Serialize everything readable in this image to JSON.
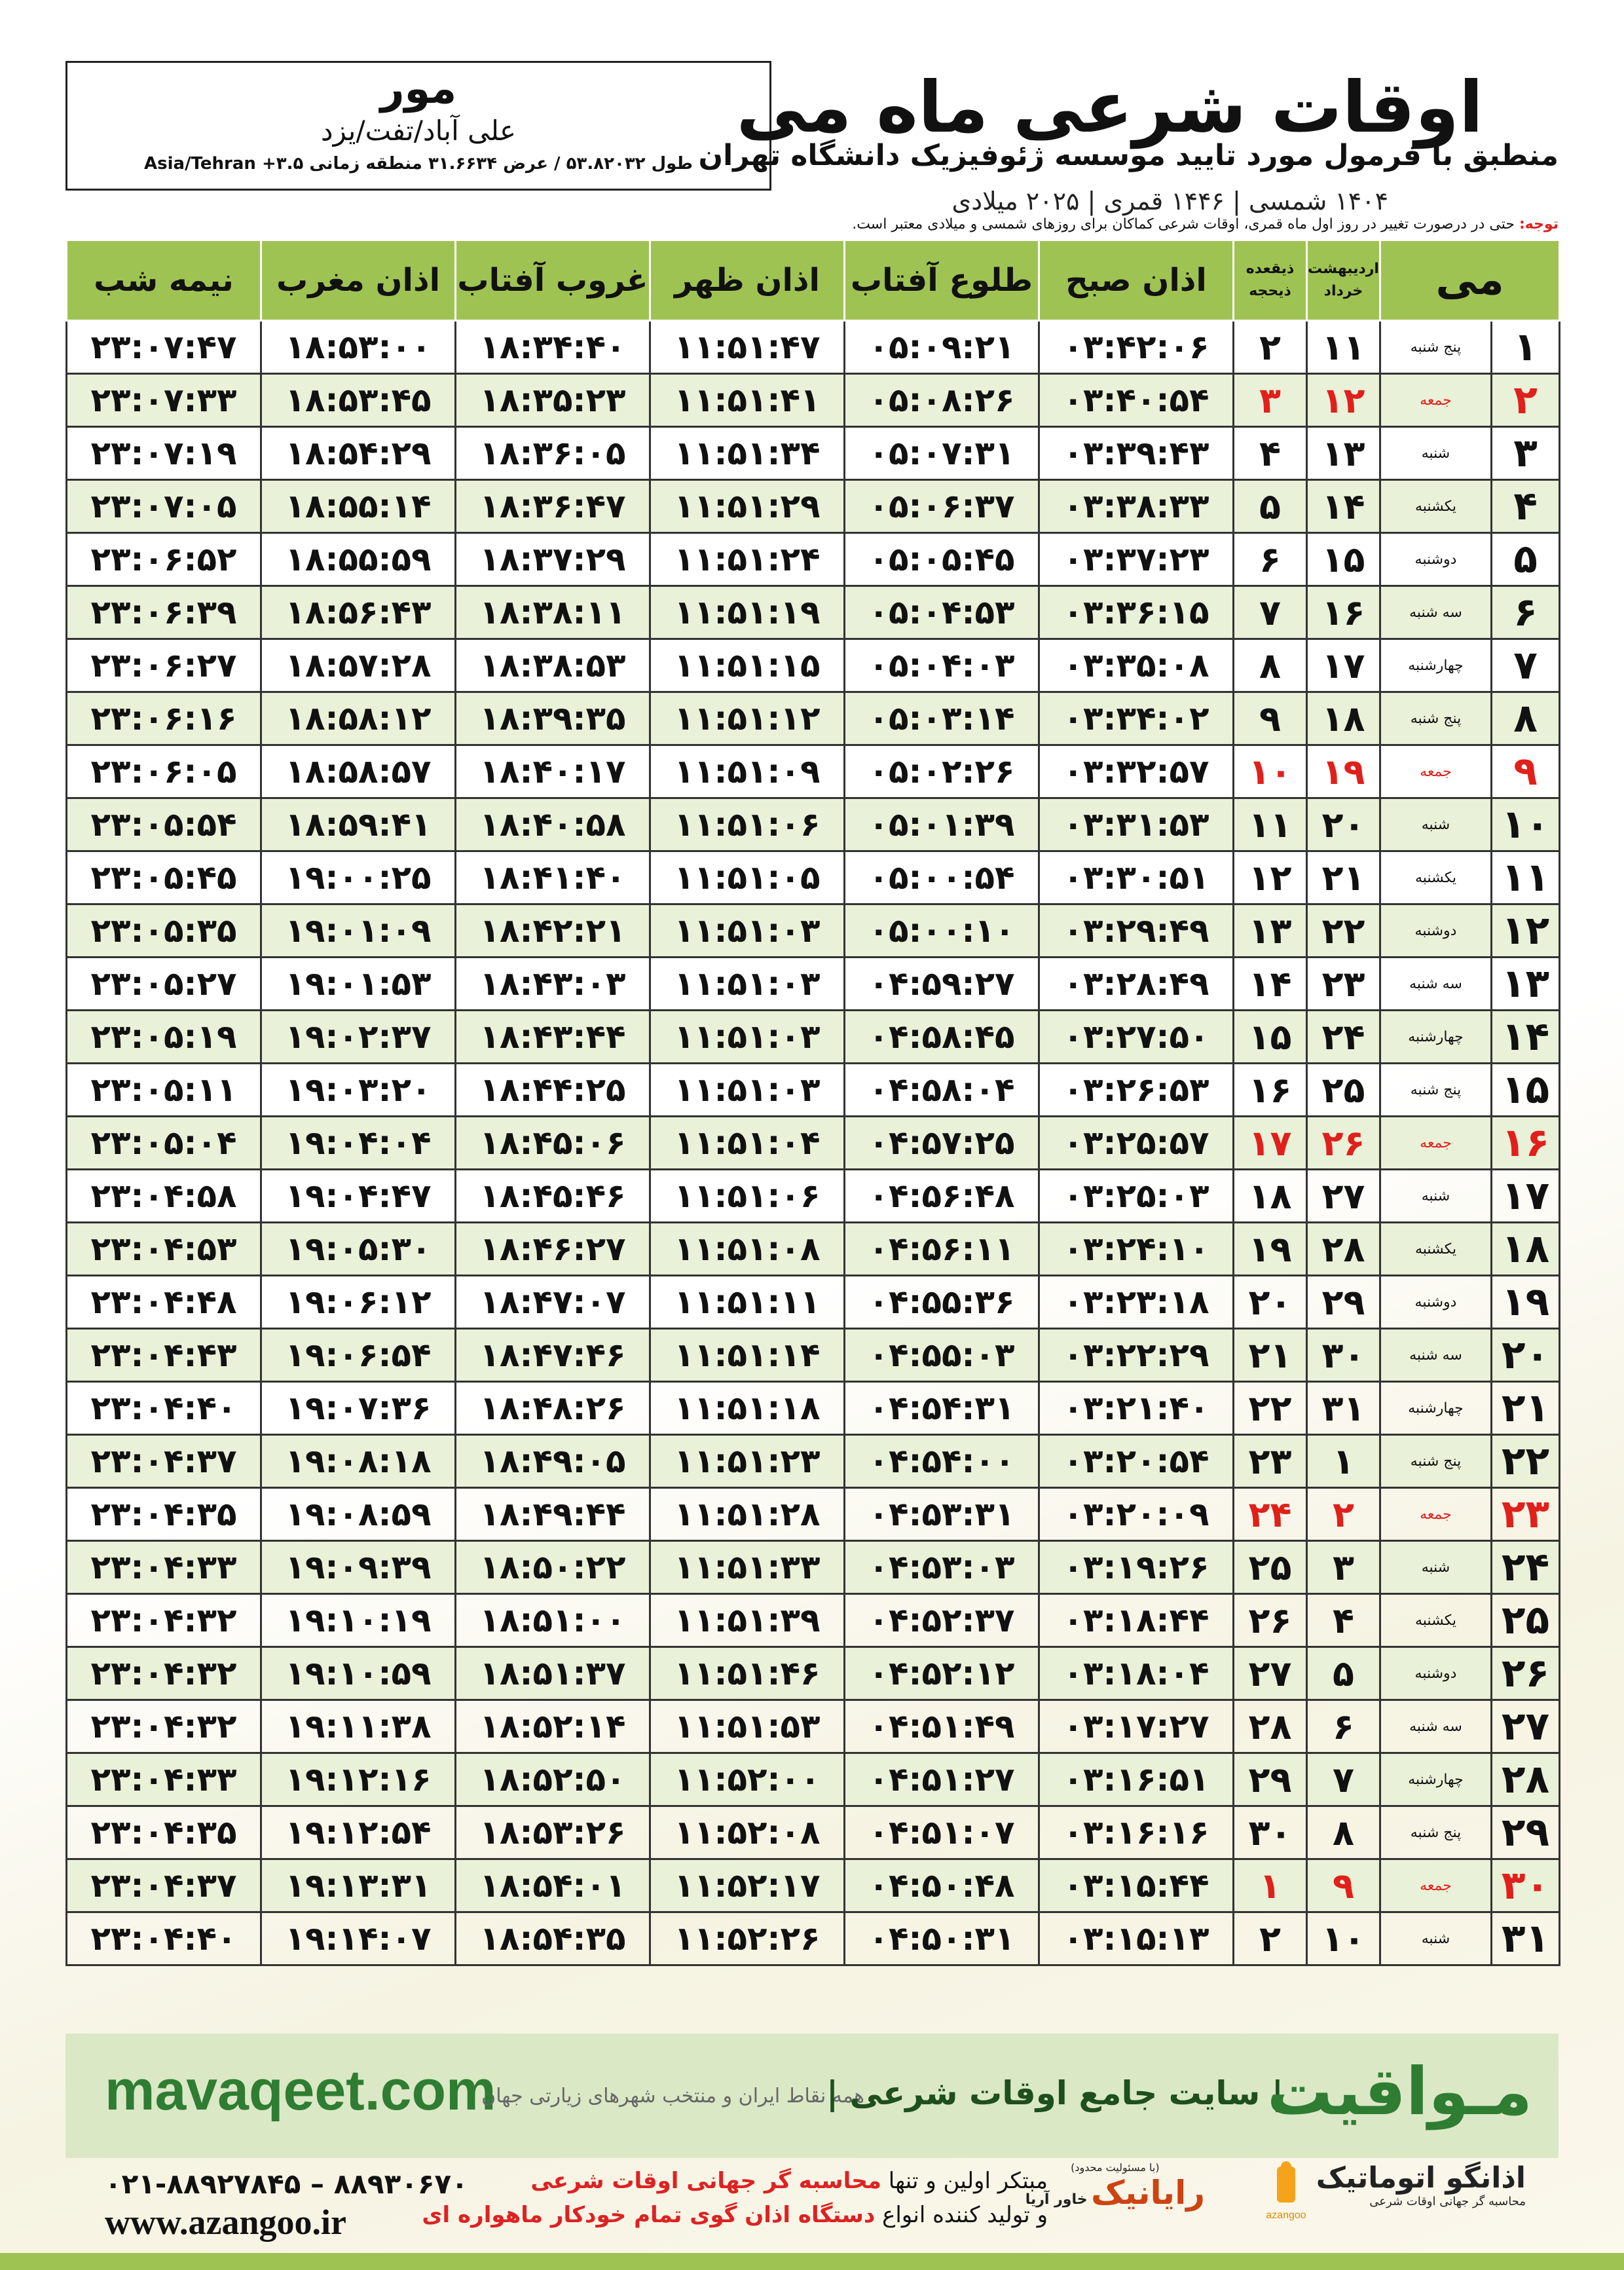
{
  "header": {
    "title": "اوقات شرعی ماه می",
    "subtitle": "منطبق با فرمول مورد تایید موسسه ژئوفیزیک دانشگاه تهران",
    "dates": "۱۴۰۴ شمسی | ۱۴۴۶ قمری | ۲۰۲۵ میلادی"
  },
  "location": {
    "city": "مور",
    "region": "علی آباد/تفت/یزد",
    "coordinates": "طول ۵۳.۸۲۰۳۲ / عرض ۳۱.۶۶۳۴ منطقه زمانی ۳.۵+ Asia/Tehran"
  },
  "note": {
    "label": "توجه:",
    "text": "حتی در درصورت تغییر در روز اول ماه قمری، اوقات شرعی کماکان برای روزهای شمسی و میلادی معتبر است."
  },
  "table": {
    "headers": {
      "month": "می",
      "shamsi": [
        "اردیبهشت",
        "خرداد"
      ],
      "qamari": [
        "ذیقعده",
        "ذیحجه"
      ],
      "times": [
        "اذان صبح",
        "طلوع آفتاب",
        "اذان ظهر",
        "غروب آفتاب",
        "اذان مغرب",
        "نیمه شب"
      ]
    },
    "rows": [
      [
        "۱",
        "پنج شنبه",
        "۱۱",
        "۲",
        "۰۳:۴۲:۰۶",
        "۰۵:۰۹:۲۱",
        "۱۱:۵۱:۴۷",
        "۱۸:۳۴:۴۰",
        "۱۸:۵۳:۰۰",
        "۲۳:۰۷:۴۷"
      ],
      [
        "۲",
        "جمعه",
        "۱۲",
        "۳",
        "۰۳:۴۰:۵۴",
        "۰۵:۰۸:۲۶",
        "۱۱:۵۱:۴۱",
        "۱۸:۳۵:۲۳",
        "۱۸:۵۳:۴۵",
        "۲۳:۰۷:۳۳"
      ],
      [
        "۳",
        "شنبه",
        "۱۳",
        "۴",
        "۰۳:۳۹:۴۳",
        "۰۵:۰۷:۳۱",
        "۱۱:۵۱:۳۴",
        "۱۸:۳۶:۰۵",
        "۱۸:۵۴:۲۹",
        "۲۳:۰۷:۱۹"
      ],
      [
        "۴",
        "یکشنبه",
        "۱۴",
        "۵",
        "۰۳:۳۸:۳۳",
        "۰۵:۰۶:۳۷",
        "۱۱:۵۱:۲۹",
        "۱۸:۳۶:۴۷",
        "۱۸:۵۵:۱۴",
        "۲۳:۰۷:۰۵"
      ],
      [
        "۵",
        "دوشنبه",
        "۱۵",
        "۶",
        "۰۳:۳۷:۲۳",
        "۰۵:۰۵:۴۵",
        "۱۱:۵۱:۲۴",
        "۱۸:۳۷:۲۹",
        "۱۸:۵۵:۵۹",
        "۲۳:۰۶:۵۲"
      ],
      [
        "۶",
        "سه شنبه",
        "۱۶",
        "۷",
        "۰۳:۳۶:۱۵",
        "۰۵:۰۴:۵۳",
        "۱۱:۵۱:۱۹",
        "۱۸:۳۸:۱۱",
        "۱۸:۵۶:۴۳",
        "۲۳:۰۶:۳۹"
      ],
      [
        "۷",
        "چهارشنبه",
        "۱۷",
        "۸",
        "۰۳:۳۵:۰۸",
        "۰۵:۰۴:۰۳",
        "۱۱:۵۱:۱۵",
        "۱۸:۳۸:۵۳",
        "۱۸:۵۷:۲۸",
        "۲۳:۰۶:۲۷"
      ],
      [
        "۸",
        "پنج شنبه",
        "۱۸",
        "۹",
        "۰۳:۳۴:۰۲",
        "۰۵:۰۳:۱۴",
        "۱۱:۵۱:۱۲",
        "۱۸:۳۹:۳۵",
        "۱۸:۵۸:۱۲",
        "۲۳:۰۶:۱۶"
      ],
      [
        "۹",
        "جمعه",
        "۱۹",
        "۱۰",
        "۰۳:۳۲:۵۷",
        "۰۵:۰۲:۲۶",
        "۱۱:۵۱:۰۹",
        "۱۸:۴۰:۱۷",
        "۱۸:۵۸:۵۷",
        "۲۳:۰۶:۰۵"
      ],
      [
        "۱۰",
        "شنبه",
        "۲۰",
        "۱۱",
        "۰۳:۳۱:۵۳",
        "۰۵:۰۱:۳۹",
        "۱۱:۵۱:۰۶",
        "۱۸:۴۰:۵۸",
        "۱۸:۵۹:۴۱",
        "۲۳:۰۵:۵۴"
      ],
      [
        "۱۱",
        "یکشنبه",
        "۲۱",
        "۱۲",
        "۰۳:۳۰:۵۱",
        "۰۵:۰۰:۵۴",
        "۱۱:۵۱:۰۵",
        "۱۸:۴۱:۴۰",
        "۱۹:۰۰:۲۵",
        "۲۳:۰۵:۴۵"
      ],
      [
        "۱۲",
        "دوشنبه",
        "۲۲",
        "۱۳",
        "۰۳:۲۹:۴۹",
        "۰۵:۰۰:۱۰",
        "۱۱:۵۱:۰۳",
        "۱۸:۴۲:۲۱",
        "۱۹:۰۱:۰۹",
        "۲۳:۰۵:۳۵"
      ],
      [
        "۱۳",
        "سه شنبه",
        "۲۳",
        "۱۴",
        "۰۳:۲۸:۴۹",
        "۰۴:۵۹:۲۷",
        "۱۱:۵۱:۰۳",
        "۱۸:۴۳:۰۳",
        "۱۹:۰۱:۵۳",
        "۲۳:۰۵:۲۷"
      ],
      [
        "۱۴",
        "چهارشنبه",
        "۲۴",
        "۱۵",
        "۰۳:۲۷:۵۰",
        "۰۴:۵۸:۴۵",
        "۱۱:۵۱:۰۳",
        "۱۸:۴۳:۴۴",
        "۱۹:۰۲:۳۷",
        "۲۳:۰۵:۱۹"
      ],
      [
        "۱۵",
        "پنج شنبه",
        "۲۵",
        "۱۶",
        "۰۳:۲۶:۵۳",
        "۰۴:۵۸:۰۴",
        "۱۱:۵۱:۰۳",
        "۱۸:۴۴:۲۵",
        "۱۹:۰۳:۲۰",
        "۲۳:۰۵:۱۱"
      ],
      [
        "۱۶",
        "جمعه",
        "۲۶",
        "۱۷",
        "۰۳:۲۵:۵۷",
        "۰۴:۵۷:۲۵",
        "۱۱:۵۱:۰۴",
        "۱۸:۴۵:۰۶",
        "۱۹:۰۴:۰۴",
        "۲۳:۰۵:۰۴"
      ],
      [
        "۱۷",
        "شنبه",
        "۲۷",
        "۱۸",
        "۰۳:۲۵:۰۳",
        "۰۴:۵۶:۴۸",
        "۱۱:۵۱:۰۶",
        "۱۸:۴۵:۴۶",
        "۱۹:۰۴:۴۷",
        "۲۳:۰۴:۵۸"
      ],
      [
        "۱۸",
        "یکشنبه",
        "۲۸",
        "۱۹",
        "۰۳:۲۴:۱۰",
        "۰۴:۵۶:۱۱",
        "۱۱:۵۱:۰۸",
        "۱۸:۴۶:۲۷",
        "۱۹:۰۵:۳۰",
        "۲۳:۰۴:۵۳"
      ],
      [
        "۱۹",
        "دوشنبه",
        "۲۹",
        "۲۰",
        "۰۳:۲۳:۱۸",
        "۰۴:۵۵:۳۶",
        "۱۱:۵۱:۱۱",
        "۱۸:۴۷:۰۷",
        "۱۹:۰۶:۱۲",
        "۲۳:۰۴:۴۸"
      ],
      [
        "۲۰",
        "سه شنبه",
        "۳۰",
        "۲۱",
        "۰۳:۲۲:۲۹",
        "۰۴:۵۵:۰۳",
        "۱۱:۵۱:۱۴",
        "۱۸:۴۷:۴۶",
        "۱۹:۰۶:۵۴",
        "۲۳:۰۴:۴۳"
      ],
      [
        "۲۱",
        "چهارشنبه",
        "۳۱",
        "۲۲",
        "۰۳:۲۱:۴۰",
        "۰۴:۵۴:۳۱",
        "۱۱:۵۱:۱۸",
        "۱۸:۴۸:۲۶",
        "۱۹:۰۷:۳۶",
        "۲۳:۰۴:۴۰"
      ],
      [
        "۲۲",
        "پنج شنبه",
        "۱",
        "۲۳",
        "۰۳:۲۰:۵۴",
        "۰۴:۵۴:۰۰",
        "۱۱:۵۱:۲۳",
        "۱۸:۴۹:۰۵",
        "۱۹:۰۸:۱۸",
        "۲۳:۰۴:۳۷"
      ],
      [
        "۲۳",
        "جمعه",
        "۲",
        "۲۴",
        "۰۳:۲۰:۰۹",
        "۰۴:۵۳:۳۱",
        "۱۱:۵۱:۲۸",
        "۱۸:۴۹:۴۴",
        "۱۹:۰۸:۵۹",
        "۲۳:۰۴:۳۵"
      ],
      [
        "۲۴",
        "شنبه",
        "۳",
        "۲۵",
        "۰۳:۱۹:۲۶",
        "۰۴:۵۳:۰۳",
        "۱۱:۵۱:۳۳",
        "۱۸:۵۰:۲۲",
        "۱۹:۰۹:۳۹",
        "۲۳:۰۴:۳۳"
      ],
      [
        "۲۵",
        "یکشنبه",
        "۴",
        "۲۶",
        "۰۳:۱۸:۴۴",
        "۰۴:۵۲:۳۷",
        "۱۱:۵۱:۳۹",
        "۱۸:۵۱:۰۰",
        "۱۹:۱۰:۱۹",
        "۲۳:۰۴:۳۲"
      ],
      [
        "۲۶",
        "دوشنبه",
        "۵",
        "۲۷",
        "۰۳:۱۸:۰۴",
        "۰۴:۵۲:۱۲",
        "۱۱:۵۱:۴۶",
        "۱۸:۵۱:۳۷",
        "۱۹:۱۰:۵۹",
        "۲۳:۰۴:۳۲"
      ],
      [
        "۲۷",
        "سه شنبه",
        "۶",
        "۲۸",
        "۰۳:۱۷:۲۷",
        "۰۴:۵۱:۴۹",
        "۱۱:۵۱:۵۳",
        "۱۸:۵۲:۱۴",
        "۱۹:۱۱:۳۸",
        "۲۳:۰۴:۳۲"
      ],
      [
        "۲۸",
        "چهارشنبه",
        "۷",
        "۲۹",
        "۰۳:۱۶:۵۱",
        "۰۴:۵۱:۲۷",
        "۱۱:۵۲:۰۰",
        "۱۸:۵۲:۵۰",
        "۱۹:۱۲:۱۶",
        "۲۳:۰۴:۳۳"
      ],
      [
        "۲۹",
        "پنج شنبه",
        "۸",
        "۳۰",
        "۰۳:۱۶:۱۶",
        "۰۴:۵۱:۰۷",
        "۱۱:۵۲:۰۸",
        "۱۸:۵۳:۲۶",
        "۱۹:۱۲:۵۴",
        "۲۳:۰۴:۳۵"
      ],
      [
        "۳۰",
        "جمعه",
        "۹",
        "۱",
        "۰۳:۱۵:۴۴",
        "۰۴:۵۰:۴۸",
        "۱۱:۵۲:۱۷",
        "۱۸:۵۴:۰۱",
        "۱۹:۱۳:۳۱",
        "۲۳:۰۴:۳۷"
      ],
      [
        "۳۱",
        "شنبه",
        "۱۰",
        "۲",
        "۰۳:۱۵:۱۳",
        "۰۴:۵۰:۳۱",
        "۱۱:۵۲:۲۶",
        "۱۸:۵۴:۳۵",
        "۱۹:۱۴:۰۷",
        "۲۳:۰۴:۴۰"
      ]
    ]
  },
  "footer": {
    "site_name": "مـواقیت",
    "tagline": "| سایت جامع اوقات شرعی |",
    "coverage": "همه نقاط ایران و منتخب شهرهای زیارتی جهان",
    "domain": "mavaqeet.com"
  },
  "contact": {
    "phone": "۰۲۱-۸۸۹۲۷۸۴۵ – ۸۸۹۳۰۶۷۰",
    "website": "www.azangoo.ir",
    "line1_prefix": "مبتکر اولین و تنها",
    "line1_highlight": "محاسبه گر جهانی اوقات شرعی",
    "line2_prefix": "و تولید کننده انواع",
    "line2_highlight": "دستگاه اذان گوی تمام خودکار ماهواره ای"
  },
  "logos": {
    "company_note": "(با مسئولیت محدود)",
    "company_name": "رایانیک",
    "company_sub": "خاور آریا",
    "brand": "اذانگو اتوماتیک",
    "brand_sub": "محاسبه گر جهانی اوقات شرعی",
    "brand_latin": "azangoo"
  }
}
